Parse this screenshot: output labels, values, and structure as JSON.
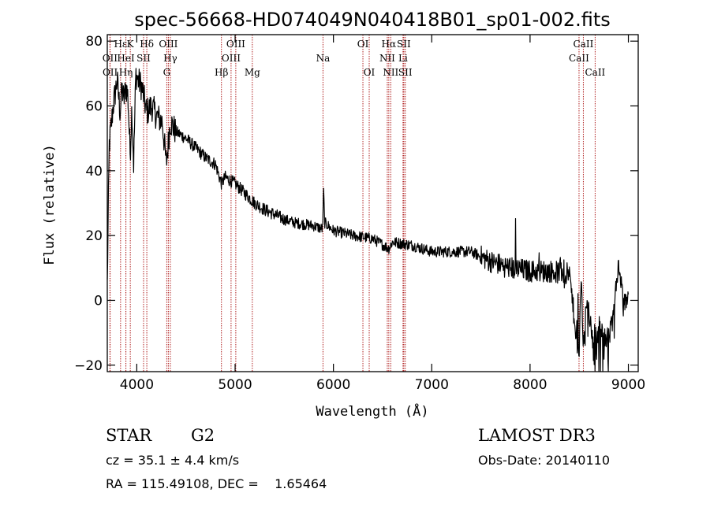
{
  "chart_data": {
    "type": "line",
    "title": "spec-56668-HD074049N040418B01_sp01-002.fits",
    "xlabel": "Wavelength (Å)",
    "ylabel": "Flux (relative)",
    "xlim": [
      3700,
      9100
    ],
    "ylim": [
      -22,
      82
    ],
    "xticks": [
      4000,
      5000,
      6000,
      7000,
      8000,
      9000
    ],
    "yticks": [
      -20,
      0,
      20,
      40,
      60,
      80
    ],
    "ytick_labels": [
      "−20",
      "0",
      "20",
      "40",
      "60",
      "80"
    ],
    "spectrum_anchors": [
      [
        3700,
        5
      ],
      [
        3720,
        48
      ],
      [
        3760,
        60
      ],
      [
        3800,
        68
      ],
      [
        3830,
        58
      ],
      [
        3850,
        65
      ],
      [
        3870,
        62
      ],
      [
        3890,
        66
      ],
      [
        3910,
        63
      ],
      [
        3933,
        45
      ],
      [
        3950,
        60
      ],
      [
        3968,
        42
      ],
      [
        3990,
        70
      ],
      [
        4010,
        68
      ],
      [
        4050,
        66
      ],
      [
        4100,
        58
      ],
      [
        4150,
        60
      ],
      [
        4200,
        57
      ],
      [
        4260,
        55
      ],
      [
        4300,
        42
      ],
      [
        4340,
        55
      ],
      [
        4400,
        52
      ],
      [
        4500,
        50
      ],
      [
        4600,
        47
      ],
      [
        4700,
        44
      ],
      [
        4800,
        42
      ],
      [
        4861,
        36
      ],
      [
        4900,
        38
      ],
      [
        5000,
        36
      ],
      [
        5100,
        33
      ],
      [
        5200,
        30
      ],
      [
        5300,
        28
      ],
      [
        5400,
        26.5
      ],
      [
        5500,
        25
      ],
      [
        5600,
        24
      ],
      [
        5700,
        23.5
      ],
      [
        5800,
        23
      ],
      [
        5890,
        22
      ],
      [
        5900,
        34
      ],
      [
        5910,
        24
      ],
      [
        6000,
        21.5
      ],
      [
        6200,
        20
      ],
      [
        6400,
        19
      ],
      [
        6563,
        16
      ],
      [
        6600,
        18
      ],
      [
        6800,
        17
      ],
      [
        7000,
        15
      ],
      [
        7200,
        15
      ],
      [
        7400,
        15
      ],
      [
        7600,
        12
      ],
      [
        7800,
        10
      ],
      [
        8000,
        9
      ],
      [
        8200,
        9
      ],
      [
        8400,
        8
      ],
      [
        8498,
        -18
      ],
      [
        8520,
        8
      ],
      [
        8542,
        -15
      ],
      [
        8580,
        2
      ],
      [
        8662,
        -20
      ],
      [
        8700,
        -8
      ],
      [
        8800,
        -12
      ],
      [
        8850,
        -5
      ],
      [
        8900,
        12
      ],
      [
        8950,
        -2
      ],
      [
        9000,
        2
      ]
    ],
    "spectral_lines": [
      {
        "label": "Hε",
        "x": 3835,
        "row": 0
      },
      {
        "label": "OII",
        "x": 3727,
        "row": 1
      },
      {
        "label": "OII",
        "x": 3729,
        "row": 2
      },
      {
        "label": "Hη",
        "x": 3889,
        "row": 2
      },
      {
        "label": "HeI",
        "x": 3889,
        "row": 1
      },
      {
        "label": "K",
        "x": 3934,
        "row": 0
      },
      {
        "label": "SII",
        "x": 4069,
        "row": 1
      },
      {
        "label": "Hδ",
        "x": 4102,
        "row": 0
      },
      {
        "label": "OIII",
        "x": 4321,
        "row": 0
      },
      {
        "label": "Hγ",
        "x": 4341,
        "row": 1
      },
      {
        "label": "G",
        "x": 4305,
        "row": 2
      },
      {
        "label": "Hβ",
        "x": 4861,
        "row": 2
      },
      {
        "label": "OIII",
        "x": 4959,
        "row": 1
      },
      {
        "label": "OIII",
        "x": 5007,
        "row": 0
      },
      {
        "label": "Mg",
        "x": 5175,
        "row": 2
      },
      {
        "label": "Na",
        "x": 5894,
        "row": 1
      },
      {
        "label": "OI",
        "x": 6300,
        "row": 0
      },
      {
        "label": "OI",
        "x": 6364,
        "row": 2
      },
      {
        "label": "Hα",
        "x": 6563,
        "row": 0
      },
      {
        "label": "NII",
        "x": 6548,
        "row": 1
      },
      {
        "label": "NII",
        "x": 6583,
        "row": 2
      },
      {
        "label": "SII",
        "x": 6716,
        "row": 0
      },
      {
        "label": "Li",
        "x": 6708,
        "row": 1
      },
      {
        "label": "SII",
        "x": 6731,
        "row": 2
      },
      {
        "label": "CaII",
        "x": 8498,
        "row": 1
      },
      {
        "label": "CaII",
        "x": 8542,
        "row": 0
      },
      {
        "label": "CaII",
        "x": 8662,
        "row": 2
      }
    ]
  },
  "info": {
    "object_class": "STAR",
    "subclass": "G2",
    "survey": "LAMOST DR3",
    "redshift": "cz = 35.1 ± 4.4 km/s",
    "obs_date": "Obs-Date: 20140110",
    "coords": "RA = 115.49108, DEC =    1.65464"
  },
  "colors": {
    "line_marker": "#b02020",
    "spectrum": "#000000"
  }
}
